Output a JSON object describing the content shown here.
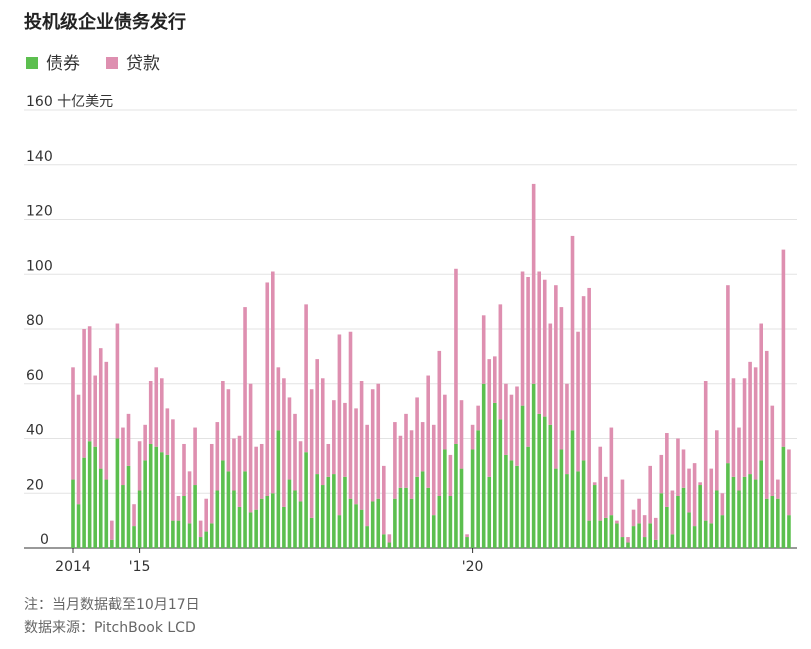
{
  "chart_data": {
    "type": "stacked-bar",
    "title": "投机级企业债务发行",
    "notes": [
      "注：当月数据截至10月17日",
      "数据来源：PitchBook LCD"
    ],
    "categories": [
      "2014",
      null,
      null,
      null,
      null,
      null,
      null,
      null,
      null,
      null,
      null,
      null,
      "'15",
      null,
      null,
      null,
      null,
      null,
      null,
      null,
      null,
      null,
      null,
      null,
      null,
      null,
      null,
      null,
      null,
      null,
      null,
      null,
      null,
      null,
      null,
      null,
      null,
      null,
      null,
      null,
      null,
      null,
      null,
      null,
      null,
      null,
      null,
      null,
      null,
      null,
      null,
      null,
      null,
      null,
      null,
      null,
      null,
      null,
      null,
      null,
      null,
      null,
      null,
      null,
      null,
      null,
      null,
      null,
      null,
      null,
      null,
      null,
      "'20",
      null,
      null,
      null,
      null,
      null,
      null,
      null,
      null,
      null,
      null,
      null,
      null,
      null,
      null,
      null,
      null,
      null,
      null,
      null,
      null,
      null,
      null,
      null,
      null,
      null,
      null,
      null,
      null,
      null,
      null,
      null,
      null,
      null,
      null,
      null,
      null,
      null,
      null,
      null,
      null,
      null,
      null,
      null,
      null,
      null,
      null,
      null,
      null,
      null,
      null,
      null,
      null,
      null,
      null,
      null,
      null,
      null
    ],
    "series": [
      {
        "name": "债券",
        "color": "#5cbf4f",
        "values": [
          25,
          16,
          33,
          39,
          37,
          29,
          25,
          3,
          40,
          23,
          30,
          8,
          21,
          32,
          38,
          37,
          35,
          34,
          10,
          10,
          19,
          9,
          23,
          4,
          6,
          9,
          21,
          32,
          28,
          21,
          15,
          28,
          13,
          14,
          18,
          19,
          20,
          43,
          15,
          25,
          21,
          17,
          35,
          11,
          27,
          23,
          26,
          27,
          12,
          26,
          18,
          16,
          14,
          8,
          17,
          18,
          5,
          2,
          18,
          22,
          22,
          18,
          26,
          28,
          22,
          12,
          19,
          36,
          19,
          38,
          29,
          4,
          36,
          43,
          60,
          26,
          53,
          47,
          34,
          32,
          30,
          52,
          37,
          60,
          49,
          48,
          45,
          29,
          36,
          27,
          43,
          28,
          32,
          10,
          23,
          10,
          11,
          12,
          9,
          4,
          2,
          8,
          9,
          4,
          9,
          3,
          20,
          15,
          5,
          19,
          22,
          13,
          8,
          23,
          10,
          9,
          21,
          12,
          31,
          26,
          21,
          26,
          27,
          25,
          32,
          18,
          19,
          18,
          37,
          12
        ]
      },
      {
        "name": "贷款",
        "color": "#de8fb0",
        "values": [
          41,
          40,
          47,
          42,
          26,
          44,
          43,
          7,
          42,
          21,
          19,
          8,
          18,
          13,
          23,
          29,
          27,
          17,
          37,
          9,
          19,
          19,
          21,
          6,
          12,
          29,
          25,
          29,
          30,
          19,
          26,
          60,
          47,
          23,
          20,
          78,
          81,
          23,
          47,
          30,
          28,
          22,
          54,
          47,
          42,
          39,
          12,
          27,
          66,
          27,
          61,
          35,
          47,
          37,
          41,
          42,
          25,
          3,
          28,
          19,
          27,
          25,
          29,
          18,
          41,
          33,
          53,
          20,
          15,
          64,
          25,
          1,
          9,
          9,
          25,
          43,
          17,
          42,
          26,
          24,
          29,
          49,
          62,
          73,
          52,
          50,
          37,
          67,
          52,
          33,
          71,
          51,
          60,
          85,
          1,
          27,
          15,
          32,
          1,
          21,
          2,
          6,
          9,
          8,
          21,
          8,
          14,
          27,
          16,
          21,
          14,
          16,
          23,
          1,
          51,
          20,
          22,
          8,
          65,
          36,
          23,
          36,
          41,
          41,
          50,
          54,
          33,
          7,
          72,
          24
        ]
      }
    ],
    "ylim": [
      0,
      160
    ],
    "yticks": [
      0,
      20,
      40,
      60,
      80,
      100,
      120,
      140,
      {
        "value": 160,
        "label": "160 十亿美元"
      }
    ],
    "grid": true,
    "legend": "top-left"
  }
}
